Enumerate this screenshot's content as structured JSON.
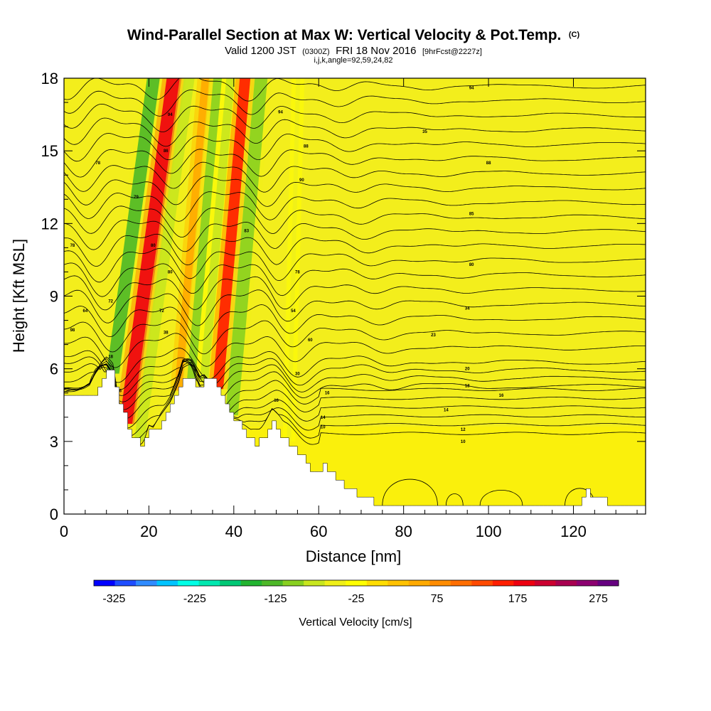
{
  "chart_data": {
    "type": "heatmap",
    "title": "Wind-Parallel Section at Max W: Vertical Velocity & Pot.Temp.",
    "title_mark": "(C)",
    "subtitle": {
      "valid": "Valid 1200 JST",
      "utc": "(0300Z)",
      "date": "FRI 18 Nov 2016",
      "forecast": "[9hrFcst@2227z]"
    },
    "indices": "i,j,k,angle=92,59,24,82",
    "xlabel": "Distance [nm]",
    "ylabel": "Height [Kft MSL]",
    "xlim": [
      0,
      137
    ],
    "ylim": [
      0,
      18
    ],
    "x_ticks": [
      0,
      20,
      40,
      60,
      80,
      100,
      120
    ],
    "y_ticks": [
      0,
      3,
      6,
      9,
      12,
      15,
      18
    ],
    "colorbar": {
      "label": "Vertical Velocity [cm/s]",
      "ticks": [
        -325,
        -225,
        -125,
        -25,
        75,
        175,
        275
      ],
      "colors": [
        "#0000ff",
        "#1e4dff",
        "#2f8bff",
        "#00c4ff",
        "#00ffe6",
        "#00e8b0",
        "#00c875",
        "#22b430",
        "#4db828",
        "#88d020",
        "#c8e61e",
        "#f0f018",
        "#ffff00",
        "#ffdd00",
        "#ffc200",
        "#ffaa00",
        "#ff8c00",
        "#ff6e00",
        "#ff4a00",
        "#ff1e00",
        "#ee0010",
        "#cc0030",
        "#a80050",
        "#8c0070",
        "#660080"
      ]
    },
    "vertical_velocity_bands": [
      {
        "x": [
          10,
          13
        ],
        "value": -120
      },
      {
        "x": [
          13,
          16.5
        ],
        "value": 185
      },
      {
        "x": [
          16.5,
          19
        ],
        "value": -90
      },
      {
        "x": [
          26,
          28
        ],
        "value": 60
      },
      {
        "x": [
          29,
          31
        ],
        "value": -110
      },
      {
        "x": [
          32,
          34
        ],
        "value": -80
      },
      {
        "x": [
          35,
          37.5
        ],
        "value": 160
      },
      {
        "x": [
          38,
          41
        ],
        "value": -100
      },
      {
        "x": [
          52.5,
          53.5
        ],
        "value": -40
      }
    ],
    "terrain_height_kft": {
      "x": [
        0,
        6,
        8,
        10,
        11.5,
        13,
        15,
        17,
        18,
        19,
        20,
        21,
        23,
        25,
        27,
        28,
        30,
        32,
        33,
        35,
        37,
        39,
        42,
        45,
        47,
        49,
        51,
        53,
        55,
        57,
        59,
        61,
        63,
        65,
        67,
        70,
        75,
        80,
        90,
        100,
        110,
        118,
        120,
        122,
        123,
        124,
        127,
        128,
        130,
        137
      ],
      "y": [
        4.8,
        4.8,
        5.3,
        5.8,
        5.8,
        4.6,
        3.6,
        3.0,
        2.9,
        3.2,
        3.6,
        3.4,
        3.9,
        4.4,
        5.1,
        5.6,
        5.6,
        5.2,
        5.5,
        5.6,
        4.9,
        4.2,
        3.5,
        2.9,
        3.3,
        3.8,
        3.3,
        2.8,
        2.5,
        2.1,
        1.6,
        2.0,
        1.7,
        1.3,
        1.0,
        0.7,
        0.35,
        0.35,
        0.35,
        0.35,
        0.35,
        0.35,
        0.35,
        0.7,
        1.0,
        0.7,
        0.7,
        0.35,
        0.35,
        0.35
      ]
    },
    "theta_contour_labels": [
      {
        "x": 96,
        "y": 17.6,
        "text": "94"
      },
      {
        "x": 51,
        "y": 16.6,
        "text": "94"
      },
      {
        "x": 25,
        "y": 16.5,
        "text": "94"
      },
      {
        "x": 85,
        "y": 15.8,
        "text": "35"
      },
      {
        "x": 57,
        "y": 15.2,
        "text": "88"
      },
      {
        "x": 24,
        "y": 15.0,
        "text": "86"
      },
      {
        "x": 8,
        "y": 14.5,
        "text": "78"
      },
      {
        "x": 100,
        "y": 14.5,
        "text": "88"
      },
      {
        "x": 56,
        "y": 13.8,
        "text": "90"
      },
      {
        "x": 17,
        "y": 13.1,
        "text": "79"
      },
      {
        "x": 96,
        "y": 12.4,
        "text": "85"
      },
      {
        "x": 43,
        "y": 11.7,
        "text": "83"
      },
      {
        "x": 2,
        "y": 11.1,
        "text": "78"
      },
      {
        "x": 21,
        "y": 11.1,
        "text": "80"
      },
      {
        "x": 96,
        "y": 10.3,
        "text": "80"
      },
      {
        "x": 25,
        "y": 10.0,
        "text": "80"
      },
      {
        "x": 55,
        "y": 10.0,
        "text": "78"
      },
      {
        "x": 11,
        "y": 8.8,
        "text": "72"
      },
      {
        "x": 23,
        "y": 8.4,
        "text": "72"
      },
      {
        "x": 95,
        "y": 8.5,
        "text": "34"
      },
      {
        "x": 5,
        "y": 8.4,
        "text": "64"
      },
      {
        "x": 54,
        "y": 8.4,
        "text": "54"
      },
      {
        "x": 2,
        "y": 7.6,
        "text": "98"
      },
      {
        "x": 24,
        "y": 7.5,
        "text": "38"
      },
      {
        "x": 87,
        "y": 7.4,
        "text": "23"
      },
      {
        "x": 58,
        "y": 7.2,
        "text": "60"
      },
      {
        "x": 11,
        "y": 6.5,
        "text": "18"
      },
      {
        "x": 95,
        "y": 6.0,
        "text": "20"
      },
      {
        "x": 55,
        "y": 5.8,
        "text": "30"
      },
      {
        "x": 95,
        "y": 5.3,
        "text": "18"
      },
      {
        "x": 13,
        "y": 5.1,
        "text": "16"
      },
      {
        "x": 62,
        "y": 5.0,
        "text": "16"
      },
      {
        "x": 103,
        "y": 4.9,
        "text": "16"
      },
      {
        "x": 50,
        "y": 4.7,
        "text": "16"
      },
      {
        "x": 90,
        "y": 4.3,
        "text": "14"
      },
      {
        "x": 61,
        "y": 4.0,
        "text": "14"
      },
      {
        "x": 61,
        "y": 3.6,
        "text": "10"
      },
      {
        "x": 94,
        "y": 3.5,
        "text": "12"
      },
      {
        "x": 94,
        "y": 3.0,
        "text": "10"
      }
    ]
  }
}
